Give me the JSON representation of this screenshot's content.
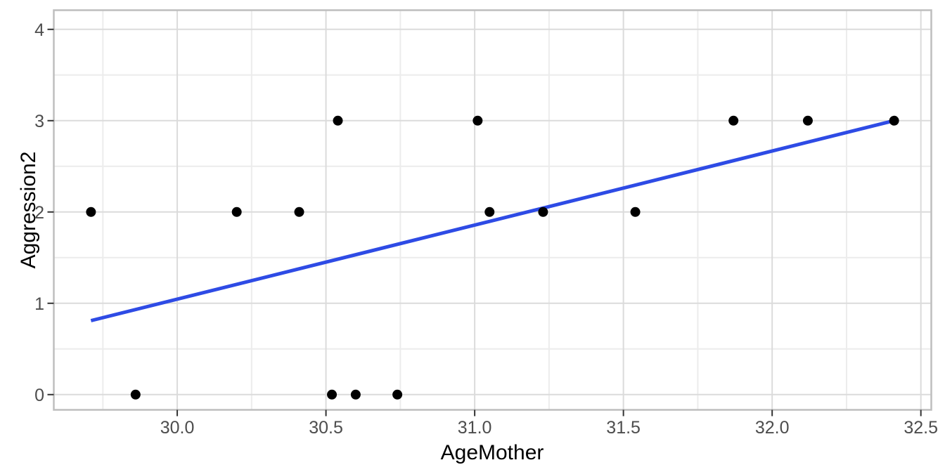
{
  "chart_data": {
    "type": "scatter",
    "xlabel": "AgeMother",
    "ylabel": "Aggression2",
    "xlim": [
      29.585,
      32.535
    ],
    "ylim": [
      -0.167,
      4.21
    ],
    "x_ticks": {
      "values": [
        30.0,
        30.5,
        31.0,
        31.5,
        32.0,
        32.5
      ],
      "labels": [
        "30.0",
        "30.5",
        "31.0",
        "31.5",
        "32.0",
        "32.5"
      ]
    },
    "y_ticks": {
      "values": [
        0,
        1,
        2,
        3,
        4
      ],
      "labels": [
        "0",
        "1",
        "2",
        "3",
        "4"
      ]
    },
    "x_minor": [
      29.75,
      30.25,
      30.75,
      31.25,
      31.75,
      32.25
    ],
    "y_minor": [
      0.5,
      1.5,
      2.5,
      3.5
    ],
    "grid": true,
    "legend": "none",
    "series": [
      {
        "name": "observations",
        "type": "scatter",
        "points": [
          [
            29.71,
            2
          ],
          [
            29.86,
            0
          ],
          [
            30.2,
            2
          ],
          [
            30.41,
            2
          ],
          [
            30.52,
            0
          ],
          [
            30.54,
            3
          ],
          [
            30.6,
            0
          ],
          [
            30.74,
            0
          ],
          [
            31.01,
            3
          ],
          [
            31.05,
            2
          ],
          [
            31.23,
            2
          ],
          [
            31.54,
            2
          ],
          [
            31.87,
            3
          ],
          [
            32.12,
            3
          ],
          [
            32.41,
            3
          ]
        ]
      },
      {
        "name": "linear-fit",
        "type": "line",
        "points": [
          [
            29.71,
            0.81
          ],
          [
            32.41,
            3.0
          ]
        ]
      }
    ],
    "colors": {
      "point": "#000000",
      "fit_line": "#2E4BE5",
      "grid_major": "#DBDBDB",
      "grid_minor": "#ECECEC",
      "panel_border": "#BEBEBE",
      "tick_mark": "#333333",
      "tick_label": "#4D4D4D",
      "axis_title": "#000000",
      "background": "#FFFFFF"
    }
  }
}
